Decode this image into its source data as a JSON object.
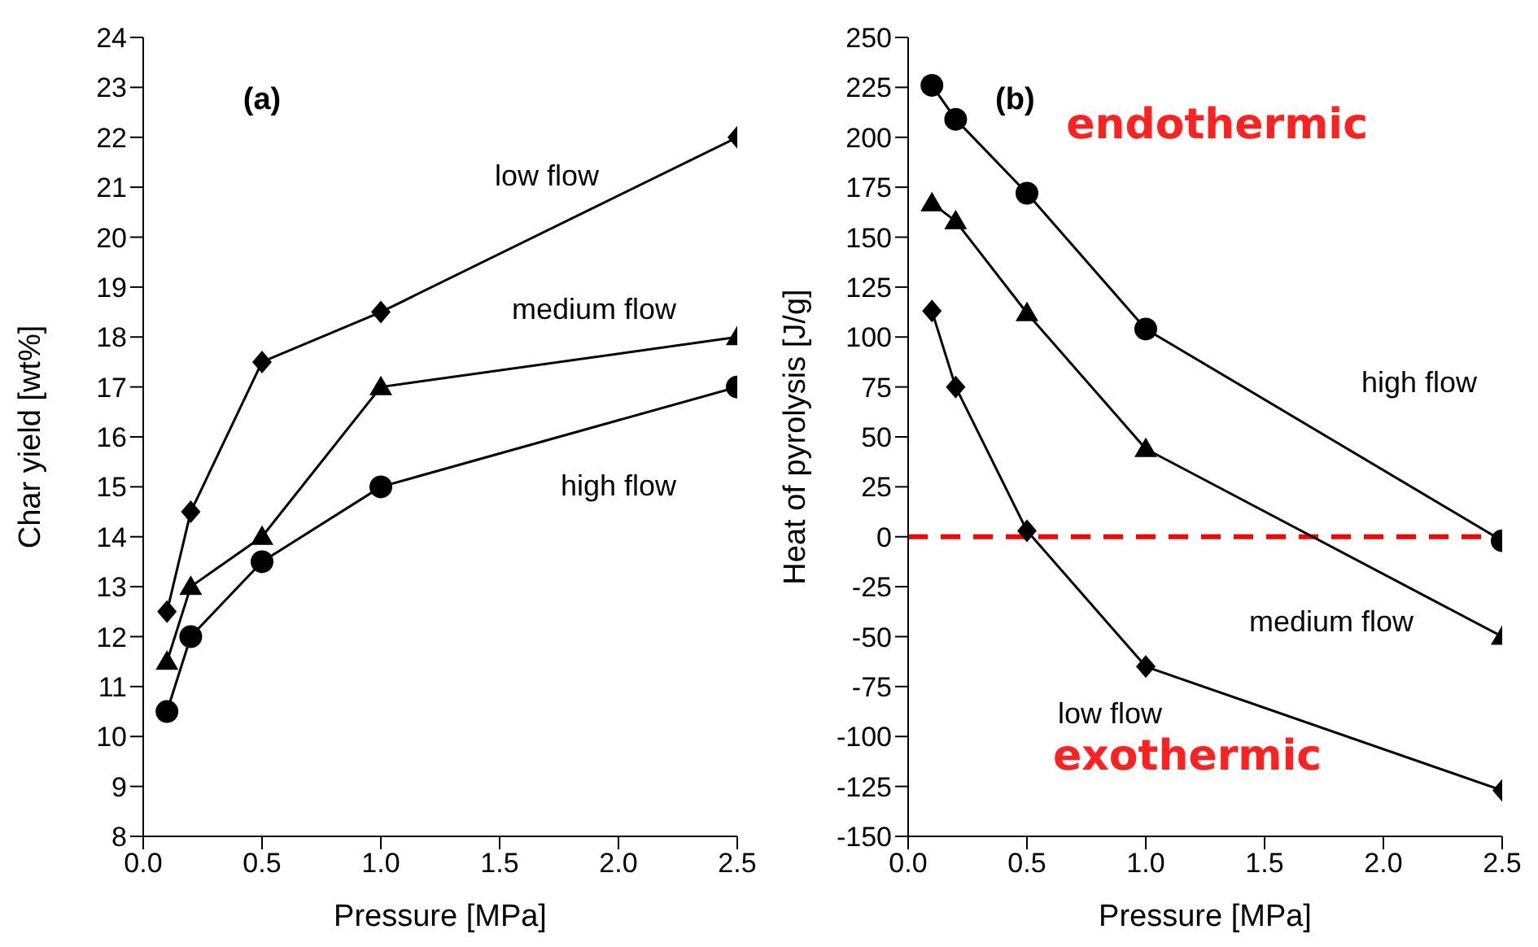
{
  "chart_data": [
    {
      "type": "line",
      "xlabel": "Pressure [MPa]",
      "ylabel": "Char yield [wt%]",
      "annotations": [
        "(a)"
      ],
      "x": [
        0.1,
        0.2,
        0.5,
        1.0,
        2.5
      ],
      "xlim": [
        0,
        2.5
      ],
      "xticks": [
        {
          "value": 0,
          "label": "0.0"
        },
        {
          "value": 0.5,
          "label": "0.5"
        },
        {
          "value": 1,
          "label": "1.0"
        },
        {
          "value": 1.5,
          "label": "1.5"
        },
        {
          "value": 2,
          "label": "2.0"
        },
        {
          "value": 2.5,
          "label": "2.5"
        }
      ],
      "ylim": [
        8,
        24
      ],
      "yticks": [
        8,
        9,
        10,
        11,
        12,
        13,
        14,
        15,
        16,
        17,
        18,
        19,
        20,
        21,
        22,
        23,
        24
      ],
      "grid": false,
      "legend": false,
      "line_style": "solid",
      "series": [
        {
          "name": "low flow",
          "color": "#000000",
          "marker": "diamond",
          "values": [
            12.5,
            14.5,
            17.5,
            18.5,
            22
          ]
        },
        {
          "name": "medium flow",
          "color": "#000000",
          "marker": "triangle",
          "values": [
            11.5,
            13,
            14,
            17,
            18
          ]
        },
        {
          "name": "high flow",
          "color": "#000000",
          "marker": "circle",
          "values": [
            10.5,
            12,
            13.5,
            15,
            17
          ]
        }
      ]
    },
    {
      "type": "line",
      "xlabel": "Pressure [MPa]",
      "ylabel": "Heat of pyrolysis [J/g]",
      "annotations": [
        "(b)",
        "endothermic",
        "exothermic"
      ],
      "x": [
        0.1,
        0.2,
        0.5,
        1.0,
        2.5
      ],
      "xlim": [
        0,
        2.5
      ],
      "xticks": [
        {
          "value": 0,
          "label": "0.0"
        },
        {
          "value": 0.5,
          "label": "0.5"
        },
        {
          "value": 1,
          "label": "1.0"
        },
        {
          "value": 1.5,
          "label": "1.5"
        },
        {
          "value": 2,
          "label": "2.0"
        },
        {
          "value": 2.5,
          "label": "2.5"
        }
      ],
      "ylim": [
        -150,
        250
      ],
      "yticks": [
        -150,
        -125,
        -100,
        -75,
        -50,
        -25,
        0,
        25,
        50,
        75,
        100,
        125,
        150,
        175,
        200,
        225,
        250
      ],
      "grid": false,
      "legend": false,
      "line_style": "solid",
      "ref_lines": [
        {
          "axis": "y",
          "value": 0,
          "color": "#ff0000",
          "line_style": "dashed"
        }
      ],
      "series": [
        {
          "name": "high flow",
          "color": "#000000",
          "marker": "circle",
          "values": [
            226,
            209,
            172,
            104,
            -2
          ]
        },
        {
          "name": "medium flow",
          "color": "#000000",
          "marker": "triangle",
          "values": [
            167,
            158,
            112,
            44,
            -50
          ]
        },
        {
          "name": "low flow",
          "color": "#000000",
          "marker": "diamond",
          "values": [
            113,
            75,
            3,
            -65,
            -127
          ]
        }
      ]
    }
  ]
}
